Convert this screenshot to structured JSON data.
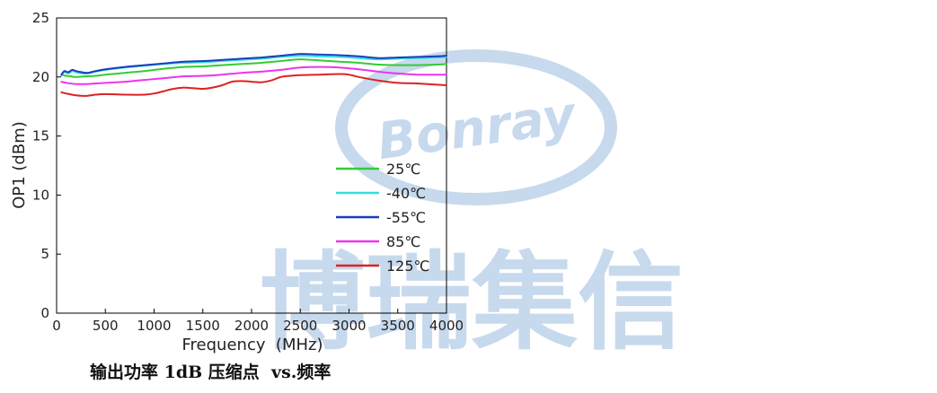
{
  "watermark": {
    "brand_latin": "Bonray",
    "brand_cn": "博瑞集信",
    "color": "#8fb3da"
  },
  "caption": "输出功率 1dB 压缩点  vs.频率",
  "chart_data": {
    "type": "line",
    "title": "",
    "xlabel": "Frequency  (MHz)",
    "ylabel": "OP1 (dBm)",
    "xlim": [
      0,
      4000
    ],
    "ylim": [
      0,
      25
    ],
    "xticks": [
      0,
      500,
      1000,
      1500,
      2000,
      2500,
      3000,
      3500,
      4000
    ],
    "yticks": [
      0,
      5,
      10,
      15,
      20,
      25
    ],
    "legend_position": "lower-right",
    "grid": false,
    "series": [
      {
        "name": "25℃",
        "color": "#33cc33",
        "x": [
          50,
          100,
          150,
          200,
          300,
          400,
          500,
          700,
          900,
          1100,
          1300,
          1500,
          1700,
          1900,
          2100,
          2300,
          2500,
          2700,
          2900,
          3100,
          3300,
          3500,
          3700,
          3900,
          4000
        ],
        "y": [
          20.2,
          20.1,
          20.05,
          20.0,
          20.05,
          20.1,
          20.2,
          20.35,
          20.5,
          20.7,
          20.85,
          20.9,
          21.0,
          21.1,
          21.2,
          21.35,
          21.5,
          21.4,
          21.3,
          21.2,
          21.05,
          21.0,
          21.0,
          21.05,
          21.1
        ]
      },
      {
        "name": "-40℃",
        "color": "#33dddd",
        "x": [
          50,
          80,
          120,
          160,
          200,
          260,
          320,
          400,
          500,
          700,
          900,
          1100,
          1300,
          1500,
          1700,
          1900,
          2100,
          2300,
          2500,
          2700,
          2900,
          3100,
          3300,
          3500,
          3700,
          3900,
          4000
        ],
        "y": [
          20.1,
          20.4,
          20.3,
          20.5,
          20.4,
          20.3,
          20.3,
          20.45,
          20.6,
          20.8,
          20.95,
          21.1,
          21.2,
          21.25,
          21.35,
          21.45,
          21.55,
          21.7,
          21.8,
          21.75,
          21.7,
          21.6,
          21.5,
          21.55,
          21.6,
          21.65,
          21.7
        ]
      },
      {
        "name": "-55℃",
        "color": "#1a3dbf",
        "x": [
          50,
          80,
          120,
          160,
          200,
          260,
          320,
          400,
          500,
          700,
          900,
          1100,
          1300,
          1500,
          1700,
          1900,
          2100,
          2300,
          2500,
          2700,
          2900,
          3100,
          3300,
          3500,
          3700,
          3900,
          4000
        ],
        "y": [
          20.2,
          20.5,
          20.4,
          20.6,
          20.5,
          20.4,
          20.35,
          20.5,
          20.65,
          20.85,
          21.0,
          21.15,
          21.3,
          21.35,
          21.45,
          21.55,
          21.65,
          21.8,
          21.95,
          21.9,
          21.85,
          21.75,
          21.6,
          21.65,
          21.7,
          21.75,
          21.8
        ]
      },
      {
        "name": "85℃",
        "color": "#ee33ee",
        "x": [
          50,
          100,
          200,
          300,
          400,
          500,
          700,
          900,
          1100,
          1300,
          1500,
          1700,
          1900,
          2100,
          2300,
          2500,
          2700,
          2900,
          3100,
          3300,
          3500,
          3700,
          3900,
          4000
        ],
        "y": [
          19.6,
          19.5,
          19.4,
          19.4,
          19.45,
          19.5,
          19.6,
          19.75,
          19.9,
          20.05,
          20.1,
          20.2,
          20.35,
          20.45,
          20.6,
          20.8,
          20.85,
          20.8,
          20.65,
          20.45,
          20.3,
          20.2,
          20.2,
          20.2
        ]
      },
      {
        "name": "125℃",
        "color": "#dd2222",
        "x": [
          50,
          100,
          200,
          300,
          400,
          500,
          700,
          900,
          1000,
          1100,
          1200,
          1300,
          1400,
          1500,
          1600,
          1700,
          1800,
          1900,
          2000,
          2100,
          2200,
          2300,
          2400,
          2500,
          2700,
          2900,
          3000,
          3100,
          3300,
          3500,
          3700,
          3900,
          4000
        ],
        "y": [
          18.7,
          18.6,
          18.45,
          18.4,
          18.5,
          18.55,
          18.5,
          18.5,
          18.6,
          18.8,
          19.0,
          19.1,
          19.05,
          19.0,
          19.1,
          19.3,
          19.6,
          19.65,
          19.6,
          19.55,
          19.7,
          20.0,
          20.1,
          20.15,
          20.2,
          20.25,
          20.2,
          20.0,
          19.7,
          19.5,
          19.45,
          19.35,
          19.3
        ]
      }
    ]
  }
}
